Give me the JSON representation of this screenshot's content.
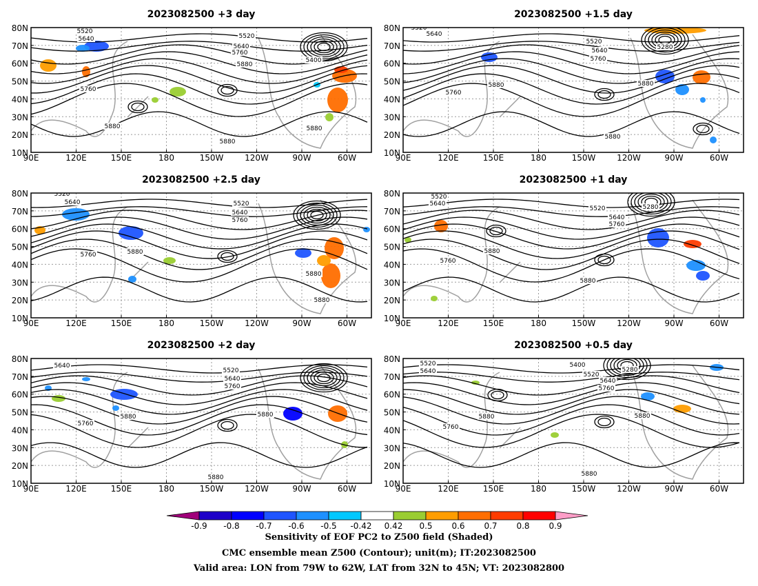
{
  "panels": [
    {
      "title": "2023082500  +3 day",
      "contour_labels": [
        "5520",
        "5640",
        "5520",
        "5640",
        "5760",
        "5880",
        "5400",
        "5760",
        "5880",
        "5880",
        "5880"
      ]
    },
    {
      "title": "2023082500  +1.5 day",
      "contour_labels": [
        "5520",
        "5640",
        "5520",
        "5640",
        "5760",
        "5280",
        "5760",
        "5880",
        "5880",
        "5880"
      ]
    },
    {
      "title": "2023082500  +2.5 day",
      "contour_labels": [
        "5520",
        "5640",
        "5520",
        "5640",
        "5760",
        "5760",
        "5880",
        "5880",
        "5880"
      ]
    },
    {
      "title": "2023082500  +1 day",
      "contour_labels": [
        "5520",
        "5640",
        "5520",
        "5640",
        "5760",
        "5280",
        "5760",
        "5880",
        "5880"
      ]
    },
    {
      "title": "2023082500  +2 day",
      "contour_labels": [
        "5640",
        "5520",
        "5640",
        "5760",
        "5760",
        "5880",
        "5880",
        "5880"
      ]
    },
    {
      "title": "2023082500  +0.5 day",
      "contour_labels": [
        "5520",
        "5640",
        "5400",
        "5280",
        "5520",
        "5640",
        "5760",
        "5760",
        "5880",
        "5880",
        "5880"
      ]
    }
  ],
  "axes": {
    "lat_labels": [
      "80N",
      "70N",
      "60N",
      "50N",
      "40N",
      "30N",
      "20N",
      "10N"
    ],
    "lon_labels": [
      "90E",
      "120E",
      "150E",
      "180",
      "150W",
      "120W",
      "90W",
      "60W"
    ]
  },
  "colorbar": {
    "ticks": [
      "-0.9",
      "-0.8",
      "-0.7",
      "-0.6",
      "-0.5",
      "-0.42",
      "0.42",
      "0.5",
      "0.6",
      "0.7",
      "0.8",
      "0.9"
    ],
    "colors": [
      "#a0007a",
      "#1e00c8",
      "#0000ff",
      "#1f55ff",
      "#1e90ff",
      "#00c8ff",
      "#ffffff",
      "#9acd32",
      "#ff9d00",
      "#ff6e00",
      "#ff3c00",
      "#ff0000",
      "#ff9ec8"
    ]
  },
  "footer": [
    "Sensitivity of EOF PC2 to Z500 field (Shaded)",
    "CMC ensemble mean Z500 (Contour); unit(m); IT:2023082500",
    "Valid area: LON from 79W to 62W, LAT from 32N to 45N; VT: 2023082800"
  ],
  "colors": {
    "contour": "#000000",
    "coast": "#a0a0a0",
    "grid": "#9a9a9a"
  }
}
